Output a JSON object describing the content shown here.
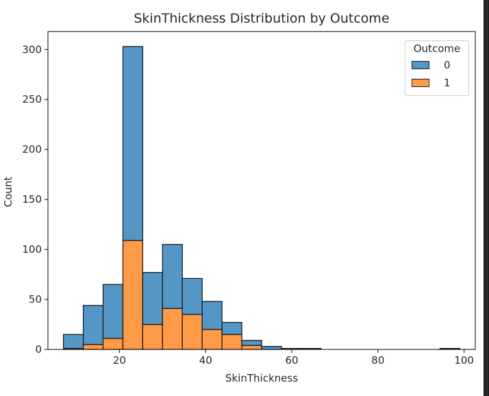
{
  "chart_data": {
    "type": "bar",
    "stacked": true,
    "histogram": true,
    "title": "SkinThickness Distribution by Outcome",
    "xlabel": "SkinThickness",
    "ylabel": "Count",
    "xlim": [
      3.4,
      102.6
    ],
    "ylim": [
      0,
      318
    ],
    "xticks": [
      20,
      40,
      60,
      80,
      100
    ],
    "yticks": [
      0,
      50,
      100,
      150,
      200,
      250,
      300
    ],
    "bins": [
      [
        7.0,
        11.6
      ],
      [
        11.6,
        16.2
      ],
      [
        16.2,
        20.8
      ],
      [
        20.8,
        25.4
      ],
      [
        25.4,
        30.0
      ],
      [
        30.0,
        34.6
      ],
      [
        34.6,
        39.2
      ],
      [
        39.2,
        43.8
      ],
      [
        43.8,
        48.4
      ],
      [
        48.4,
        53.0
      ],
      [
        53.0,
        57.6
      ],
      [
        57.6,
        62.2
      ],
      [
        62.2,
        66.8
      ],
      [
        66.8,
        71.4
      ],
      [
        71.4,
        76.0
      ],
      [
        76.0,
        80.6
      ],
      [
        80.6,
        85.2
      ],
      [
        85.2,
        89.8
      ],
      [
        89.8,
        94.4
      ],
      [
        94.4,
        99.0
      ]
    ],
    "series": [
      {
        "name": "0",
        "color": "#5497c7",
        "values": [
          14,
          39,
          54,
          194,
          52,
          64,
          36,
          28,
          12,
          5,
          3,
          1,
          1,
          0,
          0,
          0,
          0,
          0,
          0,
          1
        ]
      },
      {
        "name": "1",
        "color": "#ff9a47",
        "values": [
          1,
          5,
          11,
          109,
          25,
          41,
          35,
          20,
          15,
          4,
          0,
          0,
          0,
          0,
          0,
          0,
          0,
          0,
          0,
          0
        ]
      }
    ],
    "legend": {
      "title": "Outcome",
      "position": "upper-right"
    },
    "grid": false
  }
}
